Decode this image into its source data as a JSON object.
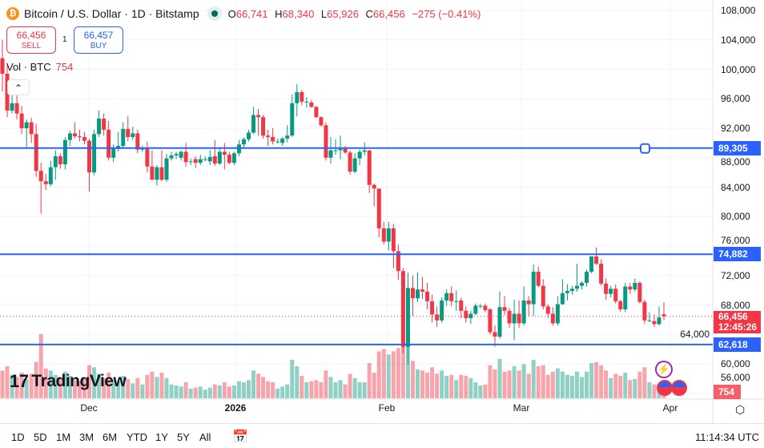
{
  "header": {
    "symbol": "Bitcoin / U.S. Dollar · 1D · Bitstamp",
    "logo_letter": "₿",
    "ohlc": {
      "o_label": "O",
      "o": "66,741",
      "h_label": "H",
      "h": "68,340",
      "l_label": "L",
      "l": "65,926",
      "c_label": "C",
      "c": "66,456",
      "change": "−275 (−0.41%)"
    }
  },
  "trade": {
    "sell_price": "66,456",
    "sell_label": "SELL",
    "qty": "1",
    "buy_price": "66,457",
    "buy_label": "BUY"
  },
  "volume_legend": {
    "label": "Vol · BTC",
    "value": "754"
  },
  "collapse_glyph": "⌃",
  "logo": {
    "mark": "17",
    "text": "TradingView"
  },
  "price_axis": {
    "ticks": [
      "108,000",
      "104,000",
      "100,000",
      "96,000",
      "92,000",
      "88,000",
      "84,000",
      "80,000",
      "76,000",
      "72,000",
      "68,000",
      "64,000",
      "60,000",
      "56,000"
    ]
  },
  "time_axis": {
    "ticks": [
      "Dec",
      "2026",
      "Feb",
      "Mar",
      "Apr"
    ]
  },
  "levels": [
    {
      "price": 89305,
      "label": "89,305"
    },
    {
      "price": 74882,
      "label": "74,882"
    },
    {
      "price": 62618,
      "label": "62,618"
    }
  ],
  "current": {
    "price": 66456,
    "label": "66,456",
    "countdown": "12:45:26",
    "volume_label": "754"
  },
  "colors": {
    "up": "#089981",
    "down": "#f23645",
    "level": "#2962ff"
  },
  "timeframes": [
    "1D",
    "5D",
    "1M",
    "3M",
    "6M",
    "YTD",
    "1Y",
    "5Y",
    "All"
  ],
  "clock": "11:14:34 UTC",
  "chart_data": {
    "type": "candlestick",
    "ylim": [
      56000,
      108000
    ],
    "candles": [
      [
        101500,
        104000,
        97000,
        99400
      ],
      [
        99400,
        100500,
        93500,
        94400
      ],
      [
        94400,
        96600,
        94000,
        95400
      ],
      [
        95400,
        96600,
        93200,
        94000
      ],
      [
        94000,
        95000,
        91200,
        92000
      ],
      [
        92000,
        93200,
        89400,
        92800
      ],
      [
        92800,
        93400,
        90000,
        91200
      ],
      [
        91200,
        92600,
        85400,
        86200
      ],
      [
        86200,
        87300,
        80400,
        84800
      ],
      [
        84800,
        85800,
        83600,
        84400
      ],
      [
        84400,
        87600,
        84100,
        86700
      ],
      [
        86700,
        89000,
        85000,
        88200
      ],
      [
        88200,
        88600,
        86500,
        87100
      ],
      [
        87100,
        90800,
        86400,
        90400
      ],
      [
        90400,
        91700,
        89600,
        91300
      ],
      [
        91300,
        92800,
        90600,
        90900
      ],
      [
        90900,
        91800,
        90200,
        90800
      ],
      [
        90800,
        91500,
        89800,
        90300
      ],
      [
        90300,
        90600,
        83400,
        86000
      ],
      [
        86000,
        91800,
        85600,
        91200
      ],
      [
        91200,
        94400,
        90800,
        93300
      ],
      [
        93300,
        94000,
        91000,
        91800
      ],
      [
        91800,
        93000,
        87600,
        88000
      ],
      [
        88000,
        89800,
        87400,
        89200
      ],
      [
        89200,
        91500,
        88800,
        89600
      ],
      [
        89600,
        92800,
        89200,
        91900
      ],
      [
        91900,
        93600,
        90200,
        90800
      ],
      [
        90800,
        92200,
        90400,
        91300
      ],
      [
        91300,
        91800,
        88600,
        89100
      ],
      [
        89100,
        89600,
        88800,
        89200
      ],
      [
        89200,
        90200,
        86000,
        86800
      ],
      [
        86800,
        89000,
        85000,
        85000
      ],
      [
        85000,
        87000,
        84200,
        86700
      ],
      [
        86700,
        89000,
        84800,
        85000
      ],
      [
        85000,
        88500,
        84700,
        87900
      ],
      [
        87900,
        88800,
        87600,
        88300
      ],
      [
        88300,
        88800,
        87800,
        88500
      ],
      [
        88000,
        89000,
        87600,
        88800
      ],
      [
        88800,
        90000,
        86800,
        87400
      ],
      [
        87400,
        87900,
        87000,
        87500
      ],
      [
        87800,
        88200,
        86600,
        87300
      ],
      [
        87300,
        88400,
        87000,
        87800
      ],
      [
        87800,
        88200,
        87500,
        87800
      ],
      [
        87500,
        89000,
        87000,
        88100
      ],
      [
        88200,
        90400,
        86900,
        87200
      ],
      [
        87200,
        89400,
        87000,
        88800
      ],
      [
        88800,
        90000,
        86400,
        88400
      ],
      [
        88400,
        88800,
        87100,
        87300
      ],
      [
        87300,
        88800,
        87000,
        88600
      ],
      [
        88600,
        90400,
        88200,
        89800
      ],
      [
        89800,
        90800,
        89400,
        90500
      ],
      [
        90500,
        91800,
        90200,
        91400
      ],
      [
        91400,
        94900,
        91200,
        93800
      ],
      [
        93800,
        94600,
        91000,
        93500
      ],
      [
        93500,
        93800,
        90600,
        91000
      ],
      [
        91000,
        91800,
        89600,
        90800
      ],
      [
        90800,
        92000,
        89800,
        90200
      ],
      [
        90200,
        90600,
        89900,
        90200
      ],
      [
        90000,
        90800,
        89600,
        90600
      ],
      [
        90600,
        92400,
        90100,
        91000
      ],
      [
        91000,
        96600,
        90800,
        95400
      ],
      [
        95400,
        98000,
        93600,
        96900
      ],
      [
        96900,
        97200,
        95100,
        95600
      ],
      [
        95600,
        96200,
        94800,
        95600
      ],
      [
        95500,
        95800,
        94800,
        94900
      ],
      [
        94900,
        95000,
        93400,
        93500
      ],
      [
        93500,
        93600,
        92200,
        92400
      ],
      [
        92400,
        92800,
        87600,
        88000
      ],
      [
        88000,
        90800,
        87200,
        89000
      ],
      [
        89000,
        90500,
        88400,
        89000
      ],
      [
        89000,
        91000,
        87800,
        89200
      ],
      [
        89200,
        89600,
        88500,
        88700
      ],
      [
        88700,
        89000,
        85700,
        86100
      ],
      [
        86100,
        88600,
        85900,
        87900
      ],
      [
        87900,
        89100,
        87000,
        88800
      ],
      [
        88800,
        90100,
        88300,
        89000
      ],
      [
        89000,
        89000,
        83200,
        84300
      ],
      [
        84300,
        84500,
        81400,
        83800
      ],
      [
        83800,
        83800,
        77200,
        78400
      ],
      [
        78400,
        79300,
        76200,
        76600
      ],
      [
        76600,
        79300,
        75400,
        78400
      ],
      [
        78400,
        79000,
        73000,
        75300
      ],
      [
        75300,
        76200,
        71400,
        72600
      ],
      [
        72600,
        73000,
        61400,
        62300
      ],
      [
        62300,
        72400,
        59900,
        70300
      ],
      [
        70300,
        72000,
        66500,
        68900
      ],
      [
        68900,
        72400,
        68400,
        70100
      ],
      [
        70100,
        71800,
        68800,
        69800
      ],
      [
        69800,
        71000,
        67400,
        68500
      ],
      [
        68500,
        69400,
        65600,
        66700
      ],
      [
        66700,
        67800,
        65000,
        65900
      ],
      [
        65900,
        69000,
        65600,
        68600
      ],
      [
        68600,
        70100,
        67900,
        69600
      ],
      [
        69600,
        70500,
        67800,
        68500
      ],
      [
        68500,
        70000,
        67200,
        68500
      ],
      [
        68600,
        69000,
        66200,
        67200
      ],
      [
        67200,
        67800,
        65600,
        66200
      ],
      [
        66200,
        67200,
        65400,
        66800
      ],
      [
        66800,
        68200,
        66600,
        67900
      ],
      [
        67900,
        68100,
        67500,
        67900
      ],
      [
        67900,
        68200,
        67000,
        67300
      ],
      [
        67400,
        67600,
        64000,
        64300
      ],
      [
        64300,
        65200,
        62300,
        63700
      ],
      [
        63700,
        69800,
        63400,
        67700
      ],
      [
        67700,
        69200,
        66600,
        67200
      ],
      [
        67200,
        67600,
        64900,
        65500
      ],
      [
        65500,
        68700,
        63200,
        66800
      ],
      [
        66800,
        68600,
        64900,
        65500
      ],
      [
        65500,
        70500,
        65200,
        68600
      ],
      [
        68600,
        69200,
        66500,
        68100
      ],
      [
        68100,
        73500,
        66500,
        72500
      ],
      [
        72500,
        73200,
        70400,
        70600
      ],
      [
        70600,
        71500,
        67400,
        67800
      ],
      [
        67800,
        68100,
        66200,
        66800
      ],
      [
        66800,
        67700,
        65200,
        65500
      ],
      [
        65500,
        69200,
        65200,
        68100
      ],
      [
        68100,
        71500,
        68000,
        69600
      ],
      [
        69600,
        70800,
        68600,
        69900
      ],
      [
        69900,
        70600,
        69400,
        70200
      ],
      [
        70200,
        73600,
        69800,
        70600
      ],
      [
        70600,
        71200,
        70100,
        71000
      ],
      [
        71000,
        72800,
        70500,
        72500
      ],
      [
        72500,
        74600,
        72300,
        74600
      ],
      [
        74600,
        75800,
        73400,
        73600
      ],
      [
        73600,
        74200,
        70600,
        70900
      ],
      [
        70900,
        71600,
        68700,
        69500
      ],
      [
        69500,
        70600,
        69000,
        70200
      ],
      [
        70200,
        70800,
        68200,
        68500
      ],
      [
        68500,
        68700,
        67100,
        67400
      ],
      [
        67400,
        71000,
        67000,
        70500
      ],
      [
        70500,
        71000,
        69500,
        70100
      ],
      [
        70100,
        71600,
        69800,
        71000
      ],
      [
        71000,
        71200,
        68200,
        68400
      ],
      [
        68400,
        68700,
        65400,
        65900
      ],
      [
        65900,
        67000,
        65700,
        65900
      ],
      [
        65800,
        66700,
        65000,
        65400
      ],
      [
        65400,
        67800,
        65200,
        66300
      ],
      [
        66741,
        68340,
        65926,
        66456
      ]
    ],
    "volumes": [
      2600,
      3000,
      2200,
      2000,
      2400,
      1800,
      2300,
      3400,
      6000,
      2800,
      2600,
      2200,
      1900,
      2500,
      2100,
      1700,
      1600,
      1800,
      3100,
      2900,
      2300,
      1900,
      2400,
      1700,
      1600,
      2100,
      1800,
      1400,
      1900,
      1300,
      2200,
      2500,
      2000,
      2400,
      1900,
      1300,
      1200,
      1100,
      1500,
      900,
      1000,
      1100,
      800,
      1000,
      1300,
      1200,
      1500,
      1100,
      1200,
      1600,
      1500,
      1700,
      2600,
      2300,
      2000,
      1600,
      1500,
      900,
      1100,
      1300,
      3600,
      3000,
      2100,
      1500,
      1600,
      1700,
      1500,
      2600,
      2000,
      1500,
      1700,
      1300,
      2300,
      1900,
      1500,
      1500,
      3300,
      2400,
      4400,
      4600,
      4100,
      4400,
      4700,
      6400,
      5600,
      3500,
      2700,
      2600,
      2400,
      2900,
      2300,
      2600,
      2100,
      2200,
      1700,
      2200,
      2100,
      1900,
      1500,
      1200,
      1300,
      3100,
      2700,
      3700,
      2500,
      2600,
      3000,
      2600,
      3200,
      2300,
      3600,
      3000,
      3100,
      2200,
      2500,
      2800,
      2500,
      2200,
      2100,
      2500,
      2000,
      2500,
      3300,
      3400,
      3100,
      2600,
      1900,
      2300,
      2100,
      2400,
      1700,
      1800,
      2500,
      2900,
      1500,
      1300,
      1300,
      754
    ]
  }
}
